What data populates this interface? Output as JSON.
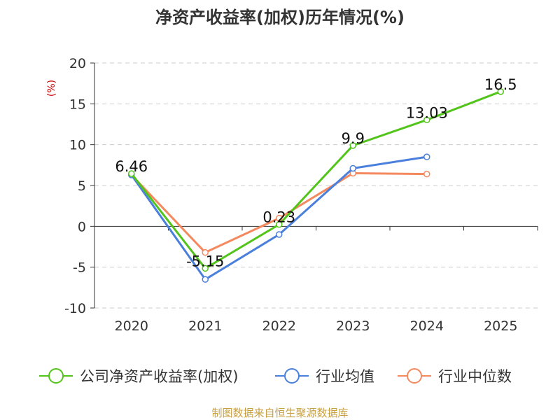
{
  "chart_data": {
    "type": "line",
    "title": "净资产收益率(加权)历年情况(%)",
    "ylabel": "(%)",
    "xlabel": "",
    "categories": [
      "2020",
      "2021",
      "2022",
      "2023",
      "2024",
      "2025"
    ],
    "ylim": [
      -10,
      20
    ],
    "yticks": [
      20,
      15,
      10,
      5,
      0,
      -5,
      -10
    ],
    "grid": true,
    "legend_position": "bottom",
    "series": [
      {
        "name": "公司净资产收益率(加权)",
        "color": "#52c41a",
        "values": [
          6.46,
          -5.15,
          0.23,
          9.9,
          13.03,
          16.5
        ],
        "labels": [
          "6.46",
          "-5.15",
          "0.23",
          "9.9",
          "13.03",
          "16.5"
        ]
      },
      {
        "name": "行业均值",
        "color": "#4a7fdc",
        "values": [
          6.3,
          -6.5,
          -1.0,
          7.1,
          8.5,
          null
        ]
      },
      {
        "name": "行业中位数",
        "color": "#f4895f",
        "values": [
          6.3,
          -3.2,
          1.0,
          6.5,
          6.4,
          null
        ]
      }
    ]
  },
  "source_text": "制图数据来自恒生聚源数据库",
  "colors": {
    "axis": "#333333",
    "grid": "#cccccc",
    "ylabel": "#cc0000",
    "source": "#c8a040"
  }
}
